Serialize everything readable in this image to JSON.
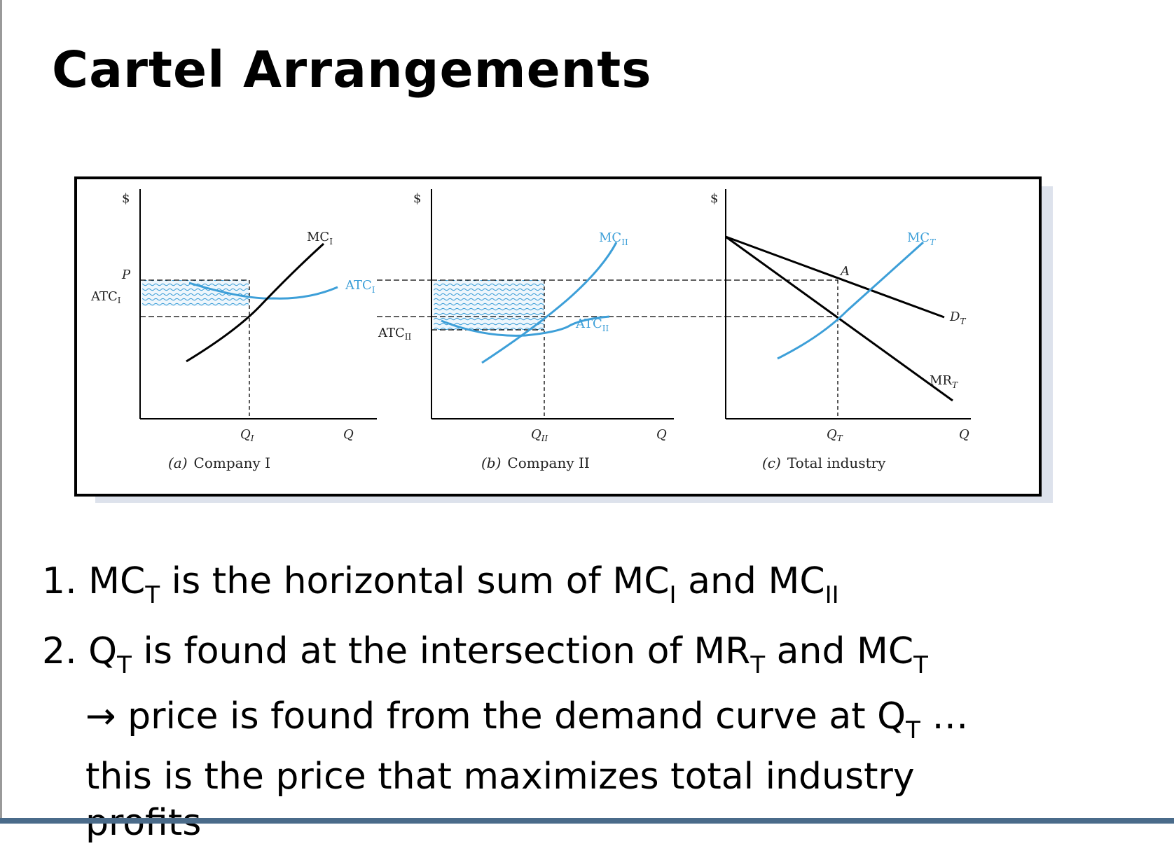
{
  "slide": {
    "title": "Cartel Arrangements"
  },
  "figure": {
    "panels": [
      {
        "id": "company-1",
        "caption_prefix": "(a)",
        "caption": "Company I",
        "y_axis_label": "$",
        "x_axis_label": "Q",
        "quantity_label": "Q",
        "quantity_sub": "I",
        "price_label": "P",
        "atc_label": "ATC",
        "atc_label_sub": "I",
        "curves": [
          {
            "name": "MC",
            "sub": "I",
            "color": "#000000"
          },
          {
            "name": "ATC",
            "sub": "I",
            "color": "#3d9fd8"
          }
        ]
      },
      {
        "id": "company-2",
        "caption_prefix": "(b)",
        "caption": "Company II",
        "y_axis_label": "$",
        "x_axis_label": "Q",
        "quantity_label": "Q",
        "quantity_sub": "II",
        "atc_label": "ATC",
        "atc_label_sub": "II",
        "curves": [
          {
            "name": "MC",
            "sub": "II",
            "color": "#3d9fd8"
          },
          {
            "name": "ATC",
            "sub": "II",
            "color": "#3d9fd8"
          }
        ]
      },
      {
        "id": "total-industry",
        "caption_prefix": "(c)",
        "caption": "Total industry",
        "y_axis_label": "$",
        "x_axis_label": "Q",
        "quantity_label": "Q",
        "quantity_sub": "T",
        "point_label": "A",
        "curves": [
          {
            "name": "MC",
            "sub": "T",
            "color": "#3d9fd8"
          },
          {
            "name": "D",
            "sub": "T",
            "color": "#000000"
          },
          {
            "name": "MR",
            "sub": "T",
            "color": "#000000"
          }
        ]
      }
    ]
  },
  "bullets": {
    "item1": {
      "num": "1.",
      "t1": "MC",
      "s1": "T",
      "t2": " is the horizontal sum of MC",
      "s2": "I",
      "t3": " and MC",
      "s3": "II"
    },
    "item2": {
      "num": "2.",
      "t1": "Q",
      "s1": "T",
      "t2": " is found at the intersection of MR",
      "s2": "T",
      "t3": " and MC",
      "s3": "T"
    },
    "item3": {
      "arrow": "→",
      "t1": " price is found from the demand curve at Q",
      "s1": "T",
      "t2": " …",
      "line2": "this is the price that maximizes total industry",
      "line3": "profits"
    }
  }
}
